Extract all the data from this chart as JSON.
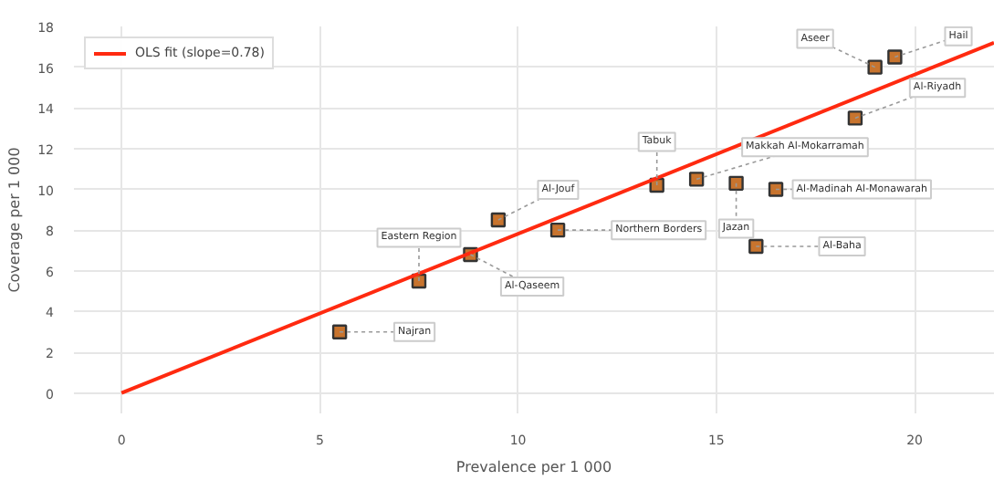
{
  "chart_data": {
    "type": "scatter",
    "xlabel": "Prevalence per 1 000",
    "ylabel": "Coverage per 1 000",
    "x": [
      5.5,
      7.5,
      8.8,
      9.5,
      11.0,
      13.5,
      14.5,
      15.5,
      16.5,
      16.0,
      18.5,
      19.0,
      19.5
    ],
    "series": [
      {
        "marker": "square",
        "color": "#c8742e",
        "values": [
          3.0,
          5.5,
          6.8,
          8.5,
          8.0,
          10.2,
          10.5,
          10.3,
          10.0,
          7.2,
          13.5,
          16.0,
          16.5
        ]
      },
      {
        "type": "line",
        "name": "OLS fit (slope=0.78)",
        "color": "#ff2a10",
        "marker": "none",
        "x": [
          0,
          22
        ],
        "values": [
          0,
          17.2
        ]
      }
    ],
    "annotations": [
      {
        "text": "Najran",
        "x": 5.5,
        "y": 3.0
      },
      {
        "text": "Eastern Region",
        "x": 7.5,
        "y": 5.5
      },
      {
        "text": "Al-Qaseem",
        "x": 8.8,
        "y": 6.8
      },
      {
        "text": "Al-Jouf",
        "x": 9.5,
        "y": 8.5
      },
      {
        "text": "Northern Borders",
        "x": 11.0,
        "y": 8.0
      },
      {
        "text": "Tabuk",
        "x": 13.5,
        "y": 10.2
      },
      {
        "text": "Makkah Al-Mokarramah",
        "x": 14.5,
        "y": 10.5
      },
      {
        "text": "Jazan",
        "x": 15.5,
        "y": 10.3
      },
      {
        "text": "Al-Madinah Al-Monawarah",
        "x": 16.5,
        "y": 10.0
      },
      {
        "text": "Al-Baha",
        "x": 16.0,
        "y": 7.2
      },
      {
        "text": "Al-Riyadh",
        "x": 18.5,
        "y": 13.5
      },
      {
        "text": "Aseer",
        "x": 19.0,
        "y": 16.0
      },
      {
        "text": "Hail",
        "x": 19.5,
        "y": 16.5
      }
    ],
    "xlim": [
      -1.2,
      22
    ],
    "ylim": [
      -1,
      18
    ],
    "xticks": [
      0,
      5,
      10,
      15,
      20
    ],
    "yticks": [
      0,
      2,
      4,
      6,
      8,
      10,
      12,
      14,
      16,
      18
    ],
    "grid": true,
    "legend": "top left"
  }
}
